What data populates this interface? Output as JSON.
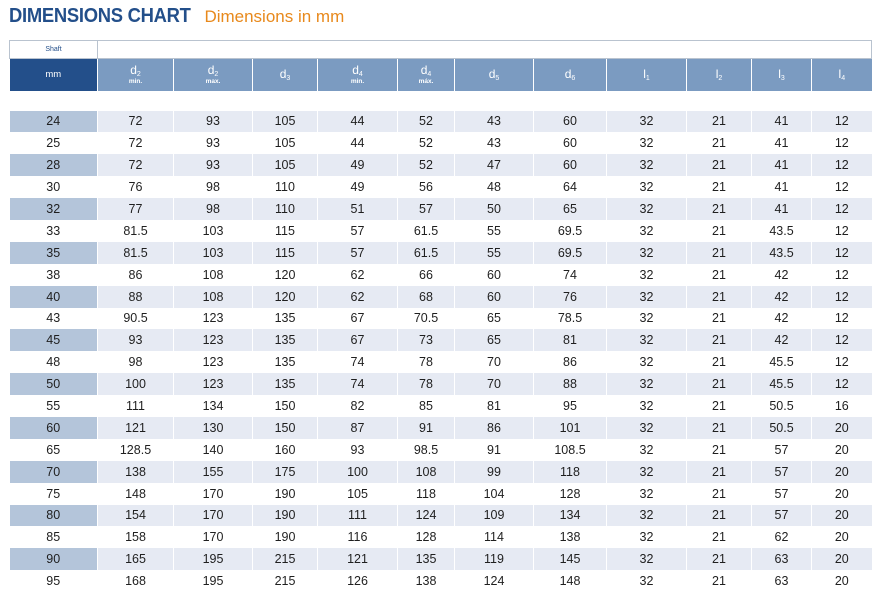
{
  "header": {
    "title": "DIMENSIONS CHART",
    "subtitle": "Dimensions in mm"
  },
  "table": {
    "shaft_label": "Shaft",
    "columns": [
      {
        "base": "mm",
        "sub": "",
        "qual": ""
      },
      {
        "base": "d",
        "sub": "2",
        "qual": "min."
      },
      {
        "base": "d",
        "sub": "2",
        "qual": "max."
      },
      {
        "base": "d",
        "sub": "3",
        "qual": ""
      },
      {
        "base": "d",
        "sub": "4",
        "qual": "min."
      },
      {
        "base": "d",
        "sub": "4",
        "qual": "máx."
      },
      {
        "base": "d",
        "sub": "5",
        "qual": ""
      },
      {
        "base": "d",
        "sub": "6",
        "qual": ""
      },
      {
        "base": "l",
        "sub": "1",
        "qual": ""
      },
      {
        "base": "l",
        "sub": "2",
        "qual": ""
      },
      {
        "base": "l",
        "sub": "3",
        "qual": ""
      },
      {
        "base": "l",
        "sub": "4",
        "qual": ""
      }
    ],
    "rows": [
      [
        "24",
        "72",
        "93",
        "105",
        "44",
        "52",
        "43",
        "60",
        "32",
        "21",
        "41",
        "12"
      ],
      [
        "25",
        "72",
        "93",
        "105",
        "44",
        "52",
        "43",
        "60",
        "32",
        "21",
        "41",
        "12"
      ],
      [
        "28",
        "72",
        "93",
        "105",
        "49",
        "52",
        "47",
        "60",
        "32",
        "21",
        "41",
        "12"
      ],
      [
        "30",
        "76",
        "98",
        "110",
        "49",
        "56",
        "48",
        "64",
        "32",
        "21",
        "41",
        "12"
      ],
      [
        "32",
        "77",
        "98",
        "110",
        "51",
        "57",
        "50",
        "65",
        "32",
        "21",
        "41",
        "12"
      ],
      [
        "33",
        "81.5",
        "103",
        "115",
        "57",
        "61.5",
        "55",
        "69.5",
        "32",
        "21",
        "43.5",
        "12"
      ],
      [
        "35",
        "81.5",
        "103",
        "115",
        "57",
        "61.5",
        "55",
        "69.5",
        "32",
        "21",
        "43.5",
        "12"
      ],
      [
        "38",
        "86",
        "108",
        "120",
        "62",
        "66",
        "60",
        "74",
        "32",
        "21",
        "42",
        "12"
      ],
      [
        "40",
        "88",
        "108",
        "120",
        "62",
        "68",
        "60",
        "76",
        "32",
        "21",
        "42",
        "12"
      ],
      [
        "43",
        "90.5",
        "123",
        "135",
        "67",
        "70.5",
        "65",
        "78.5",
        "32",
        "21",
        "42",
        "12"
      ],
      [
        "45",
        "93",
        "123",
        "135",
        "67",
        "73",
        "65",
        "81",
        "32",
        "21",
        "42",
        "12"
      ],
      [
        "48",
        "98",
        "123",
        "135",
        "74",
        "78",
        "70",
        "86",
        "32",
        "21",
        "45.5",
        "12"
      ],
      [
        "50",
        "100",
        "123",
        "135",
        "74",
        "78",
        "70",
        "88",
        "32",
        "21",
        "45.5",
        "12"
      ],
      [
        "55",
        "111",
        "134",
        "150",
        "82",
        "85",
        "81",
        "95",
        "32",
        "21",
        "50.5",
        "16"
      ],
      [
        "60",
        "121",
        "130",
        "150",
        "87",
        "91",
        "86",
        "101",
        "32",
        "21",
        "50.5",
        "20"
      ],
      [
        "65",
        "128.5",
        "140",
        "160",
        "93",
        "98.5",
        "91",
        "108.5",
        "32",
        "21",
        "57",
        "20"
      ],
      [
        "70",
        "138",
        "155",
        "175",
        "100",
        "108",
        "99",
        "118",
        "32",
        "21",
        "57",
        "20"
      ],
      [
        "75",
        "148",
        "170",
        "190",
        "105",
        "118",
        "104",
        "128",
        "32",
        "21",
        "57",
        "20"
      ],
      [
        "80",
        "154",
        "170",
        "190",
        "111",
        "124",
        "109",
        "134",
        "32",
        "21",
        "57",
        "20"
      ],
      [
        "85",
        "158",
        "170",
        "190",
        "116",
        "128",
        "114",
        "138",
        "32",
        "21",
        "62",
        "20"
      ],
      [
        "90",
        "165",
        "195",
        "215",
        "121",
        "135",
        "119",
        "145",
        "32",
        "21",
        "63",
        "20"
      ],
      [
        "95",
        "168",
        "195",
        "215",
        "126",
        "138",
        "124",
        "148",
        "32",
        "21",
        "63",
        "20"
      ]
    ]
  },
  "colors": {
    "title": "#234f8a",
    "subtitle": "#e8891c",
    "header_bg": "#7b9bc1",
    "shaft_header_bg": "#234f8a",
    "row_shade": "#e6eaf3",
    "shaft_shade": "#b4c5da"
  }
}
